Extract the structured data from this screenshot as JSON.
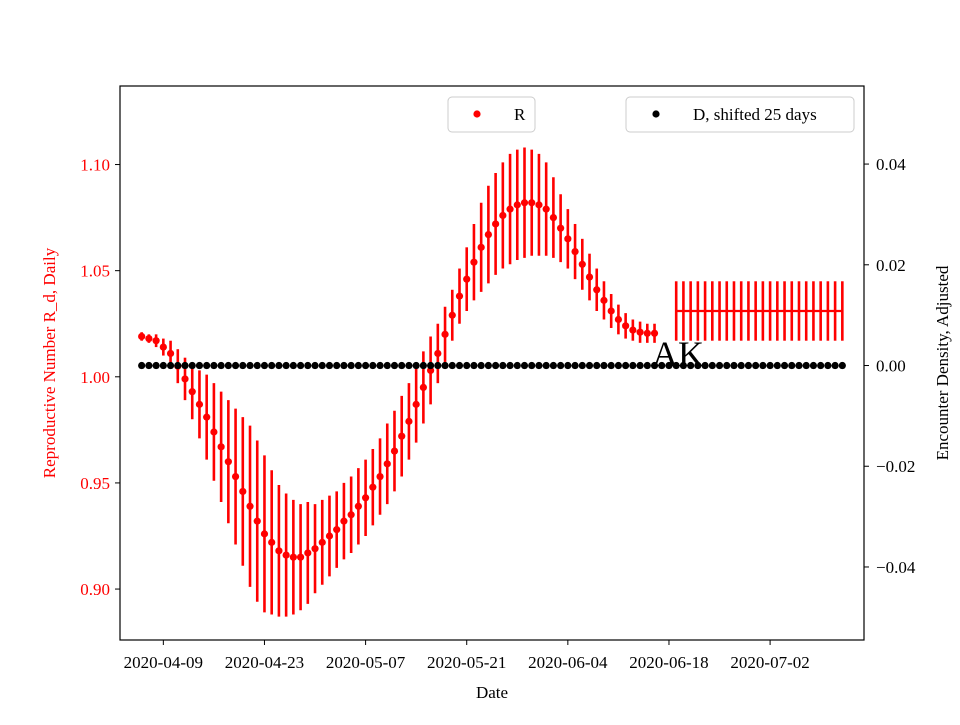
{
  "chart_data": {
    "type": "scatter",
    "title": "",
    "xlabel": "Date",
    "ylabel_left": "Reproductive Number R_d, Daily",
    "ylabel_right": "Encounter Density, Adjusted",
    "annotation": "AK",
    "x_ticks": [
      "2020-04-09",
      "2020-04-23",
      "2020-05-07",
      "2020-05-21",
      "2020-06-04",
      "2020-06-18",
      "2020-07-02"
    ],
    "y_left_ticks": [
      "0.90",
      "0.95",
      "1.00",
      "1.05",
      "1.10"
    ],
    "y_left_lim": [
      0.876,
      1.137
    ],
    "y_right_ticks": [
      "−0.04",
      "−0.02",
      "0.00",
      "0.02",
      "0.04"
    ],
    "y_right_lim": [
      -0.0545,
      0.0555
    ],
    "x_range": [
      "2020-04-03",
      "2020-07-15"
    ],
    "grid": false,
    "legend": [
      {
        "label": "R",
        "color": "#ff0000",
        "placement": "upper-center"
      },
      {
        "label": "D, shifted 25 days",
        "color": "#000000",
        "placement": "upper-right"
      }
    ],
    "colors": {
      "R": "#ff0000",
      "D": "#000000"
    },
    "series": [
      {
        "name": "R",
        "axis": "left",
        "x_start": "2020-04-06",
        "values": [
          1.019,
          1.018,
          1.017,
          1.014,
          1.011,
          1.005,
          0.999,
          0.993,
          0.987,
          0.981,
          0.974,
          0.967,
          0.96,
          0.953,
          0.946,
          0.939,
          0.932,
          0.926,
          0.922,
          0.918,
          0.916,
          0.915,
          0.915,
          0.917,
          0.919,
          0.922,
          0.925,
          0.928,
          0.932,
          0.935,
          0.939,
          0.943,
          0.948,
          0.953,
          0.959,
          0.965,
          0.972,
          0.979,
          0.987,
          0.995,
          1.003,
          1.011,
          1.02,
          1.029,
          1.038,
          1.046,
          1.054,
          1.061,
          1.067,
          1.072,
          1.076,
          1.079,
          1.081,
          1.082,
          1.082,
          1.081,
          1.079,
          1.075,
          1.07,
          1.065,
          1.059,
          1.053,
          1.047,
          1.041,
          1.036,
          1.031,
          1.027,
          1.024,
          1.022,
          1.021,
          1.0205,
          1.0205
        ],
        "error_low": [
          1.017,
          1.016,
          1.014,
          1.01,
          1.005,
          0.997,
          0.989,
          0.98,
          0.971,
          0.961,
          0.951,
          0.941,
          0.931,
          0.921,
          0.911,
          0.901,
          0.894,
          0.889,
          0.888,
          0.887,
          0.887,
          0.888,
          0.89,
          0.893,
          0.898,
          0.902,
          0.906,
          0.91,
          0.914,
          0.917,
          0.921,
          0.925,
          0.93,
          0.935,
          0.94,
          0.946,
          0.953,
          0.961,
          0.969,
          0.978,
          0.987,
          0.997,
          1.007,
          1.017,
          1.025,
          1.031,
          1.036,
          1.04,
          1.044,
          1.048,
          1.051,
          1.053,
          1.055,
          1.056,
          1.057,
          1.057,
          1.057,
          1.056,
          1.054,
          1.051,
          1.046,
          1.041,
          1.036,
          1.031,
          1.027,
          1.023,
          1.02,
          1.018,
          1.017,
          1.016,
          1.016,
          1.016
        ],
        "error_high": [
          1.021,
          1.02,
          1.02,
          1.018,
          1.017,
          1.013,
          1.009,
          1.006,
          1.003,
          1.001,
          0.997,
          0.993,
          0.989,
          0.985,
          0.981,
          0.977,
          0.97,
          0.963,
          0.956,
          0.949,
          0.945,
          0.942,
          0.94,
          0.941,
          0.94,
          0.942,
          0.944,
          0.946,
          0.95,
          0.953,
          0.957,
          0.961,
          0.966,
          0.971,
          0.978,
          0.984,
          0.991,
          0.997,
          1.005,
          1.012,
          1.019,
          1.025,
          1.033,
          1.041,
          1.051,
          1.061,
          1.072,
          1.082,
          1.09,
          1.096,
          1.101,
          1.105,
          1.107,
          1.108,
          1.107,
          1.105,
          1.101,
          1.094,
          1.086,
          1.079,
          1.072,
          1.065,
          1.058,
          1.051,
          1.045,
          1.039,
          1.034,
          1.03,
          1.027,
          1.026,
          1.025,
          1.025
        ]
      },
      {
        "name": "R",
        "axis": "left",
        "style": "flat-projection",
        "x_start": "2020-06-19",
        "x_end": "2020-07-12",
        "value": 1.031,
        "error_low": 1.017,
        "error_high": 1.045
      },
      {
        "name": "D, shifted 25 days",
        "axis": "right",
        "x_start": "2020-04-06",
        "x_end": "2020-07-12",
        "value": 0.0
      }
    ]
  }
}
